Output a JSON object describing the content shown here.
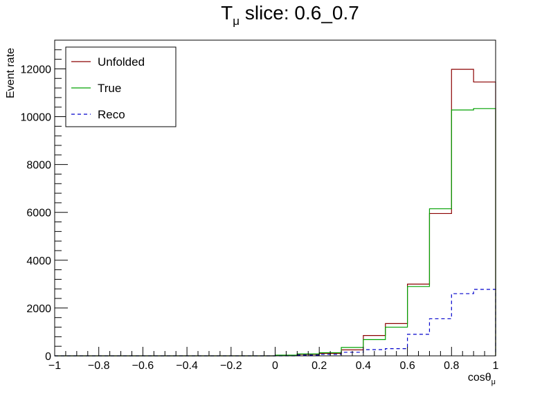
{
  "chart_data": {
    "type": "step-histogram",
    "title_main": "T",
    "title_sub": "μ",
    "title_rest": " slice: 0.6_0.7",
    "ylabel": "Event rate",
    "xlabel_main": "cosθ",
    "xlabel_sub": "μ",
    "xlim": [
      -1,
      1
    ],
    "ylim": [
      0,
      13200
    ],
    "x_ticks": [
      -1,
      -0.8,
      -0.6,
      -0.4,
      -0.2,
      0,
      0.2,
      0.4,
      0.6,
      0.8,
      1
    ],
    "x_tick_labels": [
      "−1",
      "−0.8",
      "−0.6",
      "−0.4",
      "−0.2",
      "0",
      "0.2",
      "0.4",
      "0.6",
      "0.8",
      "1"
    ],
    "y_ticks": [
      0,
      2000,
      4000,
      6000,
      8000,
      10000,
      12000
    ],
    "y_tick_labels": [
      "0",
      "2000",
      "4000",
      "6000",
      "8000",
      "10000",
      "12000"
    ],
    "bin_edges": [
      -1,
      -0.9,
      -0.8,
      -0.7,
      -0.6,
      -0.5,
      -0.4,
      -0.3,
      -0.2,
      -0.1,
      0,
      0.1,
      0.2,
      0.3,
      0.4,
      0.5,
      0.6,
      0.7,
      0.8,
      0.9,
      1
    ],
    "series": [
      {
        "name": "Unfolded",
        "color": "#8b0000",
        "dash": "solid",
        "values": [
          0,
          0,
          0,
          0,
          0,
          0,
          0,
          0,
          0,
          0,
          20,
          60,
          100,
          250,
          850,
          1350,
          3000,
          5950,
          11980,
          11450
        ]
      },
      {
        "name": "True",
        "color": "#00a000",
        "dash": "solid",
        "values": [
          0,
          0,
          0,
          0,
          0,
          0,
          0,
          0,
          0,
          0,
          30,
          80,
          130,
          350,
          680,
          1200,
          2900,
          6150,
          10280,
          10340
        ]
      },
      {
        "name": "Reco",
        "color": "#0000cc",
        "dash": "dashed",
        "values": [
          0,
          0,
          0,
          0,
          0,
          0,
          0,
          0,
          0,
          0,
          0,
          30,
          60,
          150,
          260,
          300,
          900,
          1550,
          2600,
          2780
        ]
      }
    ],
    "legend_position": "top-left",
    "grid": false
  }
}
